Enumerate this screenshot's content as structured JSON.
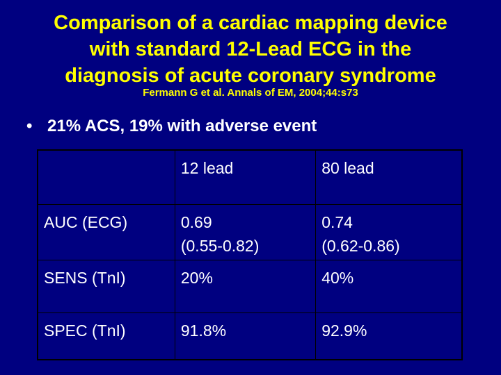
{
  "title": {
    "line1": "Comparison of a cardiac mapping device",
    "line2": "with standard 12-Lead ECG in the",
    "line3": "diagnosis of acute coronary syndrome"
  },
  "citation": "Fermann G et al. Annals of EM, 2004;44:s73",
  "bullet": {
    "symbol": "•",
    "text": "21% ACS, 19% with adverse event"
  },
  "table": {
    "headers": [
      "",
      "12 lead",
      "80 lead"
    ],
    "rows": [
      {
        "label": "AUC (ECG)",
        "lead12": {
          "value": "0.69",
          "ci": "(0.55-0.82)"
        },
        "lead80": {
          "value": "0.74",
          "ci": "(0.62-0.86)"
        }
      },
      {
        "label": "SENS (TnI)",
        "lead12": {
          "value": "20%"
        },
        "lead80": {
          "value": "40%"
        }
      },
      {
        "label": "SPEC (TnI)",
        "lead12": {
          "value": "91.8%"
        },
        "lead80": {
          "value": "92.9%"
        }
      }
    ]
  },
  "colors": {
    "background": "#000080",
    "title": "#ffff00",
    "text": "#ffffff",
    "table_border": "#000000"
  }
}
